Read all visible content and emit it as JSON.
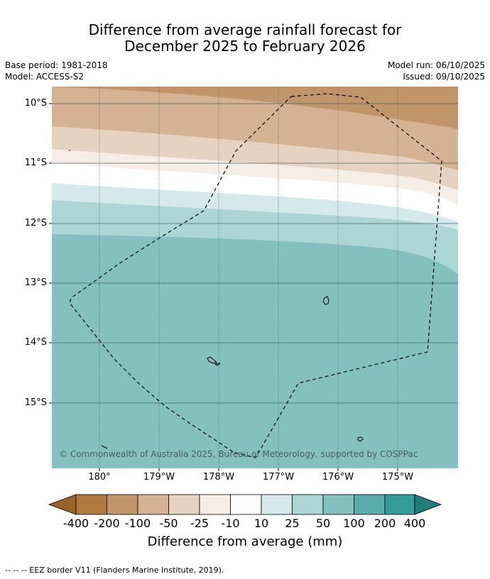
{
  "header": {
    "title_line1": "Difference from average rainfall forecast for",
    "title_line2": "December 2025 to February 2026"
  },
  "meta": {
    "base_period": "Base period: 1981-2018",
    "model": "Model: ACCESS-S2",
    "model_run": "Model run: 06/10/2025",
    "issued": "Issued: 09/10/2025"
  },
  "map": {
    "lat_labels": [
      "10°S",
      "11°S",
      "12°S",
      "13°S",
      "14°S",
      "15°S"
    ],
    "lon_labels": [
      "180°",
      "179°W",
      "178°W",
      "177°W",
      "176°W",
      "175°W"
    ],
    "copyright": "© Commonwealth of Australia 2025, Bureau of Meteorology, supported by COSPPac",
    "category_colors": {
      "lt_-400": "#9a6227",
      "-400_-200": "#b07a3e",
      "-200_-100": "#c0956a",
      "-100_-50": "#d4b293",
      "-50_-25": "#e5d2c1",
      "-25_-10": "#f5ede7",
      "-10_10": "#ffffff",
      "10_25": "#d4e9e9",
      "25_50": "#acd5d5",
      "50_100": "#84c0c0",
      "100_200": "#5aacac",
      "200_400": "#339c9a",
      "gt_400": "#1f7e7c"
    },
    "gridline_color": "#4d6666"
  },
  "colorbar": {
    "ticks": [
      "-400",
      "-200",
      "-100",
      "-50",
      "-25",
      "-10",
      "10",
      "25",
      "50",
      "100",
      "200",
      "400"
    ],
    "colors": [
      "#b07a3e",
      "#c0956a",
      "#d4b293",
      "#e5d2c1",
      "#f5ede7",
      "#ffffff",
      "#d4e9e9",
      "#acd5d5",
      "#84c0c0",
      "#5aacac",
      "#339c9a"
    ],
    "low_extend_color": "#9a6227",
    "high_extend_color": "#1f7e7c",
    "title": "Difference from average (mm)"
  },
  "legend": {
    "footnote": "--  --  -- EEZ border V11 (Flanders Marine Institute, 2019)."
  }
}
